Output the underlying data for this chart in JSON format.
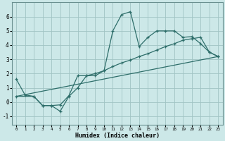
{
  "xlabel": "Humidex (Indice chaleur)",
  "bg_color": "#cce8e8",
  "grid_color": "#a0c4c4",
  "line_color": "#2e6e6a",
  "xlim": [
    -0.5,
    23.5
  ],
  "ylim": [
    -1.6,
    7.0
  ],
  "xticks": [
    0,
    1,
    2,
    3,
    4,
    5,
    6,
    7,
    8,
    9,
    10,
    11,
    12,
    13,
    14,
    15,
    16,
    17,
    18,
    19,
    20,
    21,
    22,
    23
  ],
  "yticks": [
    -1,
    0,
    1,
    2,
    3,
    4,
    5,
    6
  ],
  "line1_x": [
    0,
    1,
    2,
    3,
    4,
    5,
    6,
    7,
    8,
    9,
    10,
    11,
    12,
    13,
    14,
    15,
    16,
    17,
    18,
    19,
    20,
    21,
    22,
    23
  ],
  "line1_y": [
    1.6,
    0.5,
    0.4,
    -0.25,
    -0.25,
    -0.65,
    0.4,
    1.0,
    1.85,
    1.85,
    2.2,
    5.0,
    6.15,
    6.35,
    3.9,
    4.55,
    5.0,
    5.0,
    5.0,
    4.55,
    4.6,
    4.1,
    3.5,
    3.2
  ],
  "line2_x": [
    0,
    2,
    3,
    4,
    5,
    6,
    7,
    8,
    9,
    10,
    11,
    12,
    13,
    14,
    15,
    16,
    17,
    18,
    19,
    20,
    21,
    22,
    23
  ],
  "line2_y": [
    0.4,
    0.4,
    -0.25,
    -0.25,
    -0.2,
    0.45,
    1.85,
    1.85,
    2.0,
    2.2,
    2.5,
    2.75,
    2.95,
    3.2,
    3.4,
    3.65,
    3.9,
    4.1,
    4.35,
    4.45,
    4.55,
    3.5,
    3.2
  ],
  "line3_x": [
    0,
    23
  ],
  "line3_y": [
    0.4,
    3.2
  ]
}
